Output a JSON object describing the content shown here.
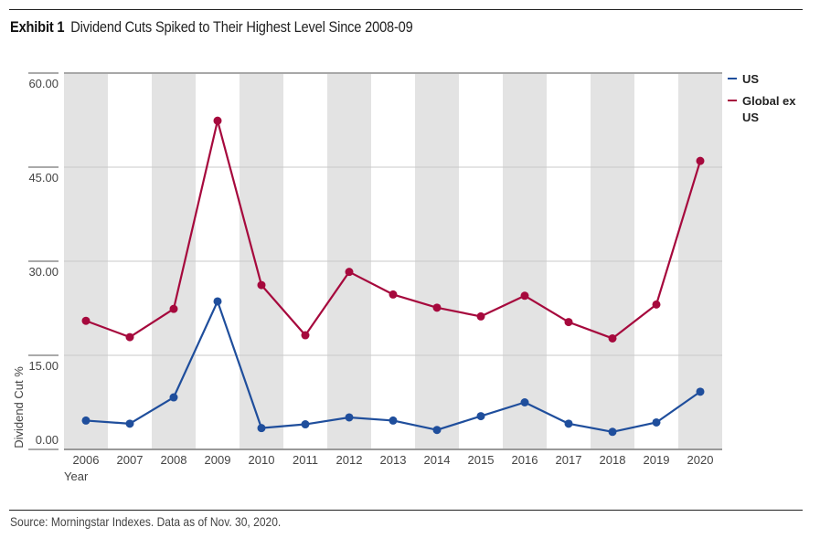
{
  "header": {
    "exhibit_label": "Exhibit 1",
    "title": "Dividend Cuts Spiked to Their Highest Level Since 2008-09"
  },
  "footer": {
    "source": "Source: Morningstar Indexes. Data as of Nov. 30, 2020."
  },
  "chart_data": {
    "type": "line",
    "title": "Dividend Cuts Spiked to Their Highest Level Since 2008-09",
    "xlabel": "Year",
    "ylabel": "Dividend Cut %",
    "categories": [
      "2006",
      "2007",
      "2008",
      "2009",
      "2010",
      "2011",
      "2012",
      "2013",
      "2014",
      "2015",
      "2016",
      "2017",
      "2018",
      "2019",
      "2020"
    ],
    "ylim": [
      0,
      60
    ],
    "yticks": [
      0,
      15,
      30,
      45,
      60
    ],
    "ytick_labels": [
      "0.00",
      "15.00",
      "30.00",
      "45.00",
      "60.00"
    ],
    "grid": true,
    "alternating_bands": true,
    "legend_position": "right",
    "series": [
      {
        "name": "US",
        "color": "#1f4e9c",
        "values": [
          4.6,
          4.1,
          8.3,
          23.6,
          3.4,
          4.0,
          5.1,
          4.6,
          3.1,
          5.3,
          7.5,
          4.1,
          2.8,
          4.3,
          9.2
        ]
      },
      {
        "name": "Global ex US",
        "color": "#a6093d",
        "values": [
          20.5,
          17.9,
          22.4,
          52.4,
          26.2,
          18.2,
          28.3,
          24.7,
          22.6,
          21.2,
          24.5,
          20.3,
          17.7,
          23.1,
          46.0
        ]
      }
    ],
    "legend": [
      {
        "label_lines": [
          "US"
        ],
        "color": "#1f4e9c"
      },
      {
        "label_lines": [
          "Global ex",
          "US"
        ],
        "color": "#a6093d"
      }
    ],
    "band_color": "#e3e3e3",
    "gridline_color": "#c8c8c8"
  }
}
